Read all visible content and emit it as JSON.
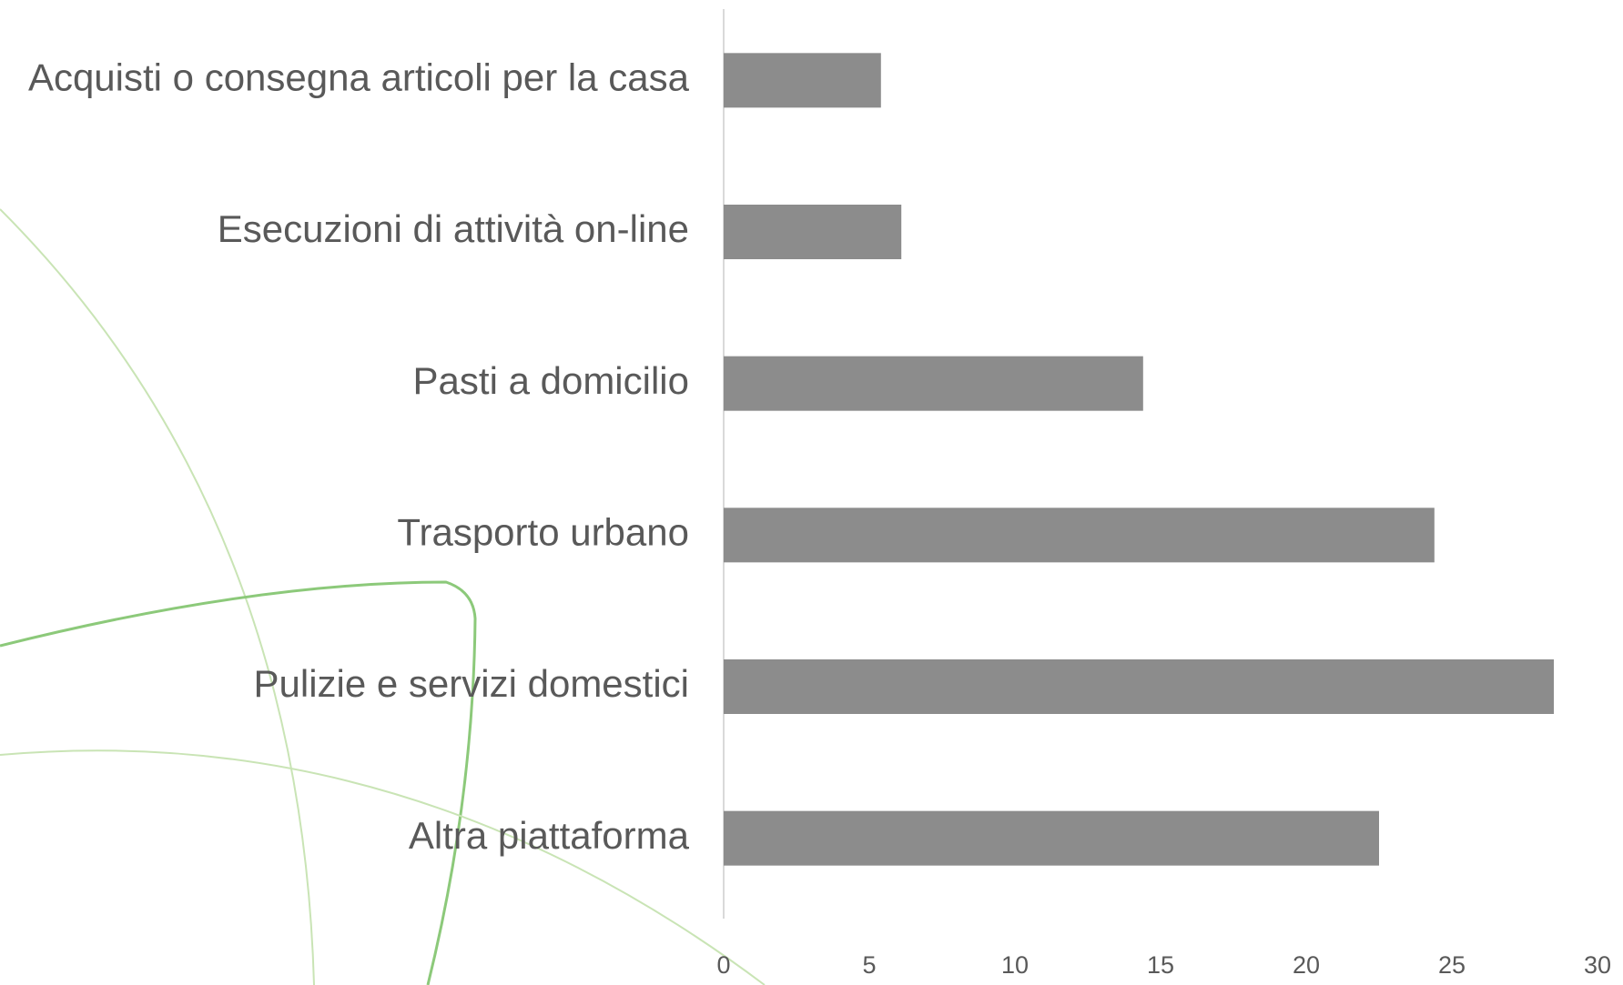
{
  "chart_data": {
    "type": "barh",
    "categories": [
      "Acquisti o consegna articoli per la casa",
      "Esecuzioni di attività on-line",
      "Pasti a domicilio",
      "Trasporto urbano",
      "Pulizie e servizi domestici",
      "Altra piattaforma"
    ],
    "values": [
      5.4,
      6.1,
      14.4,
      24.4,
      28.5,
      22.5
    ],
    "color": "#8c8c8c",
    "xlim": [
      0,
      30
    ],
    "xticks": [
      0,
      5,
      10,
      15,
      20,
      25,
      30
    ],
    "grid": false
  }
}
